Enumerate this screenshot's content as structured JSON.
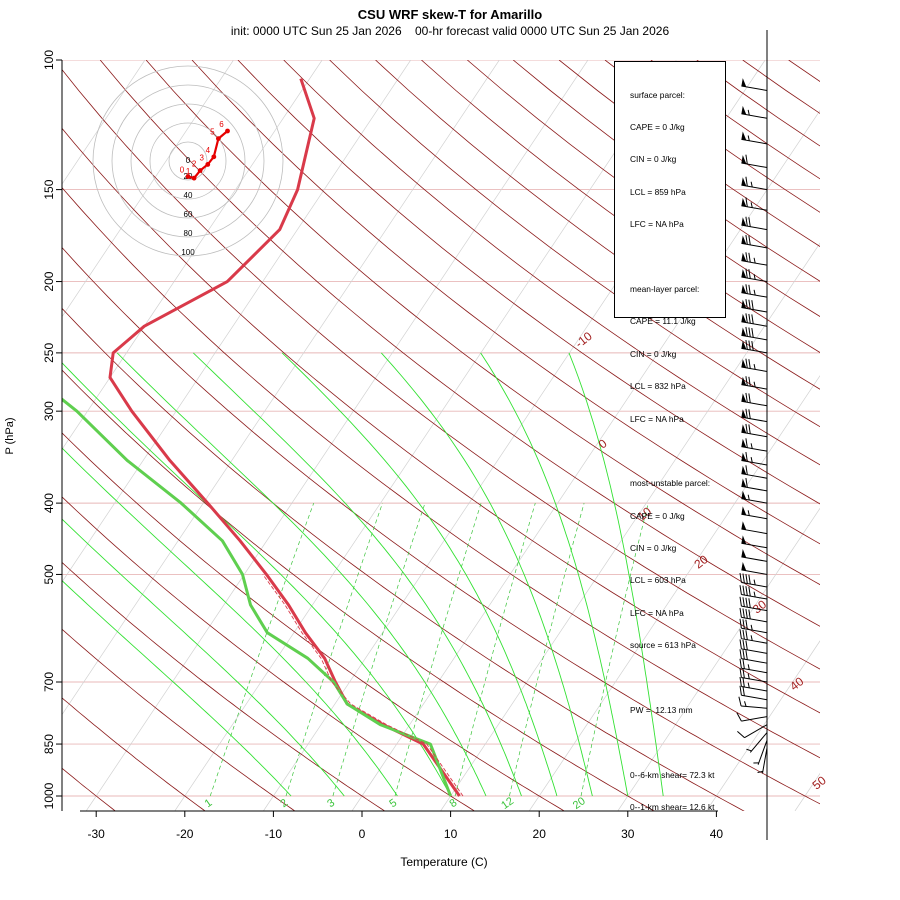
{
  "header": {
    "title": "CSU WRF skew-T for Amarillo",
    "subtitle": "init: 0000 UTC Sun 25 Jan 2026    00-hr forecast valid 0000 UTC Sun 25 Jan 2026"
  },
  "info_panel": {
    "surface": [
      "surface parcel:",
      "CAPE = 0 J/kg",
      "CIN = 0 J/kg",
      "LCL = 859 hPa",
      "LFC = NA hPa"
    ],
    "mean_layer": [
      "mean-layer parcel:",
      "CAPE = 11.1 J/kg",
      "CIN = 0 J/kg",
      "LCL = 832 hPa",
      "LFC = NA hPa"
    ],
    "most_unstable": [
      "most-unstable parcel:",
      "CAPE = 0 J/kg",
      "CIN = 0 J/kg",
      "LCL = 603 hPa",
      "LFC = NA hPa",
      "source = 613 hPa"
    ],
    "pw": [
      "PW =  12.13 mm"
    ],
    "shear": [
      "0--6-km shear= 72.3 kt",
      "0--1-km shear= 12.6 kt"
    ]
  },
  "chart_data": {
    "type": "line",
    "xlabel": "Temperature (C)",
    "ylabel": "P (hPa)",
    "xlim": [
      -33,
      45
    ],
    "x_ticks": [
      -30,
      -20,
      -10,
      0,
      10,
      20,
      30,
      40
    ],
    "ylim": [
      1000,
      100
    ],
    "y_scale": "log",
    "y_ticks": [
      100,
      150,
      200,
      250,
      300,
      400,
      500,
      700,
      850,
      1000
    ],
    "isotherm_labels": [
      -10,
      0,
      10,
      20,
      30,
      40,
      50
    ],
    "mixing_ratio_labels": [
      "1",
      "2",
      "3",
      "5",
      "8",
      "12",
      "20"
    ],
    "series": [
      {
        "role": "temperature",
        "color": "#d93a4a",
        "points": [
          [
            1000,
            11.0
          ],
          [
            850,
            3.0
          ],
          [
            800,
            -3.0
          ],
          [
            750,
            -8.6
          ],
          [
            700,
            -11.6
          ],
          [
            650,
            -14.6
          ],
          [
            600,
            -18.7
          ],
          [
            550,
            -22.7
          ],
          [
            500,
            -27.5
          ],
          [
            450,
            -33.0
          ],
          [
            400,
            -39.5
          ],
          [
            350,
            -47.0
          ],
          [
            300,
            -55.0
          ],
          [
            270,
            -60.0
          ],
          [
            250,
            -61.5
          ],
          [
            230,
            -60.0
          ],
          [
            200,
            -54.0
          ],
          [
            170,
            -52.0
          ],
          [
            150,
            -53.0
          ],
          [
            120,
            -56.5
          ],
          [
            106,
            -61.0
          ]
        ]
      },
      {
        "role": "dewpoint",
        "color": "#5fcf4f",
        "points": [
          [
            1000,
            10.0
          ],
          [
            850,
            3.8
          ],
          [
            800,
            -3.3
          ],
          [
            750,
            -8.6
          ],
          [
            700,
            -11.8
          ],
          [
            650,
            -16.5
          ],
          [
            600,
            -23.0
          ],
          [
            550,
            -27.0
          ],
          [
            500,
            -30.2
          ],
          [
            450,
            -35.0
          ],
          [
            400,
            -42.5
          ],
          [
            350,
            -51.8
          ],
          [
            300,
            -61.2
          ],
          [
            270,
            -68.5
          ],
          [
            250,
            -74.5
          ],
          [
            230,
            -79.5
          ],
          [
            210,
            -84.0
          ],
          [
            180,
            -96.0
          ],
          [
            170,
            -93.5
          ]
        ]
      }
    ],
    "hodograph": {
      "rings": [
        20,
        40,
        60,
        80,
        100
      ],
      "labels": [
        "0",
        "1",
        "2",
        "3",
        "4",
        "5",
        "6"
      ],
      "points_kt": [
        [
          0,
          -5
        ],
        [
          4,
          -6
        ],
        [
          8,
          -1
        ],
        [
          13,
          3
        ],
        [
          17,
          8
        ],
        [
          20,
          20
        ],
        [
          26,
          25
        ]
      ]
    },
    "wind_barbs": [
      {
        "p": 110,
        "spd": 50,
        "dir": 280
      },
      {
        "p": 120,
        "spd": 55,
        "dir": 280
      },
      {
        "p": 130,
        "spd": 55,
        "dir": 280
      },
      {
        "p": 140,
        "spd": 60,
        "dir": 280
      },
      {
        "p": 150,
        "spd": 65,
        "dir": 280
      },
      {
        "p": 160,
        "spd": 65,
        "dir": 280
      },
      {
        "p": 170,
        "spd": 70,
        "dir": 280
      },
      {
        "p": 180,
        "spd": 70,
        "dir": 280
      },
      {
        "p": 190,
        "spd": 75,
        "dir": 280
      },
      {
        "p": 200,
        "spd": 75,
        "dir": 280
      },
      {
        "p": 210,
        "spd": 75,
        "dir": 280
      },
      {
        "p": 220,
        "spd": 80,
        "dir": 280
      },
      {
        "p": 230,
        "spd": 80,
        "dir": 280
      },
      {
        "p": 240,
        "spd": 80,
        "dir": 280
      },
      {
        "p": 250,
        "spd": 80,
        "dir": 280
      },
      {
        "p": 265,
        "spd": 75,
        "dir": 280
      },
      {
        "p": 280,
        "spd": 75,
        "dir": 280
      },
      {
        "p": 295,
        "spd": 70,
        "dir": 280
      },
      {
        "p": 310,
        "spd": 70,
        "dir": 280
      },
      {
        "p": 325,
        "spd": 70,
        "dir": 280
      },
      {
        "p": 340,
        "spd": 65,
        "dir": 280
      },
      {
        "p": 355,
        "spd": 65,
        "dir": 280
      },
      {
        "p": 370,
        "spd": 60,
        "dir": 280
      },
      {
        "p": 385,
        "spd": 60,
        "dir": 280
      },
      {
        "p": 400,
        "spd": 55,
        "dir": 280
      },
      {
        "p": 420,
        "spd": 55,
        "dir": 280
      },
      {
        "p": 440,
        "spd": 50,
        "dir": 280
      },
      {
        "p": 460,
        "spd": 50,
        "dir": 280
      },
      {
        "p": 480,
        "spd": 50,
        "dir": 280
      },
      {
        "p": 500,
        "spd": 50,
        "dir": 280
      },
      {
        "p": 520,
        "spd": 45,
        "dir": 280
      },
      {
        "p": 540,
        "spd": 45,
        "dir": 280
      },
      {
        "p": 560,
        "spd": 40,
        "dir": 280
      },
      {
        "p": 580,
        "spd": 40,
        "dir": 280
      },
      {
        "p": 600,
        "spd": 35,
        "dir": 280
      },
      {
        "p": 620,
        "spd": 35,
        "dir": 280
      },
      {
        "p": 640,
        "spd": 30,
        "dir": 280
      },
      {
        "p": 660,
        "spd": 30,
        "dir": 280
      },
      {
        "p": 680,
        "spd": 25,
        "dir": 280
      },
      {
        "p": 700,
        "spd": 25,
        "dir": 280
      },
      {
        "p": 720,
        "spd": 25,
        "dir": 280
      },
      {
        "p": 740,
        "spd": 20,
        "dir": 280
      },
      {
        "p": 760,
        "spd": 15,
        "dir": 275
      },
      {
        "p": 780,
        "spd": 10,
        "dir": 260
      },
      {
        "p": 800,
        "spd": 10,
        "dir": 240
      },
      {
        "p": 820,
        "spd": 5,
        "dir": 220
      },
      {
        "p": 840,
        "spd": 5,
        "dir": 200
      },
      {
        "p": 860,
        "spd": 5,
        "dir": 190
      }
    ]
  }
}
